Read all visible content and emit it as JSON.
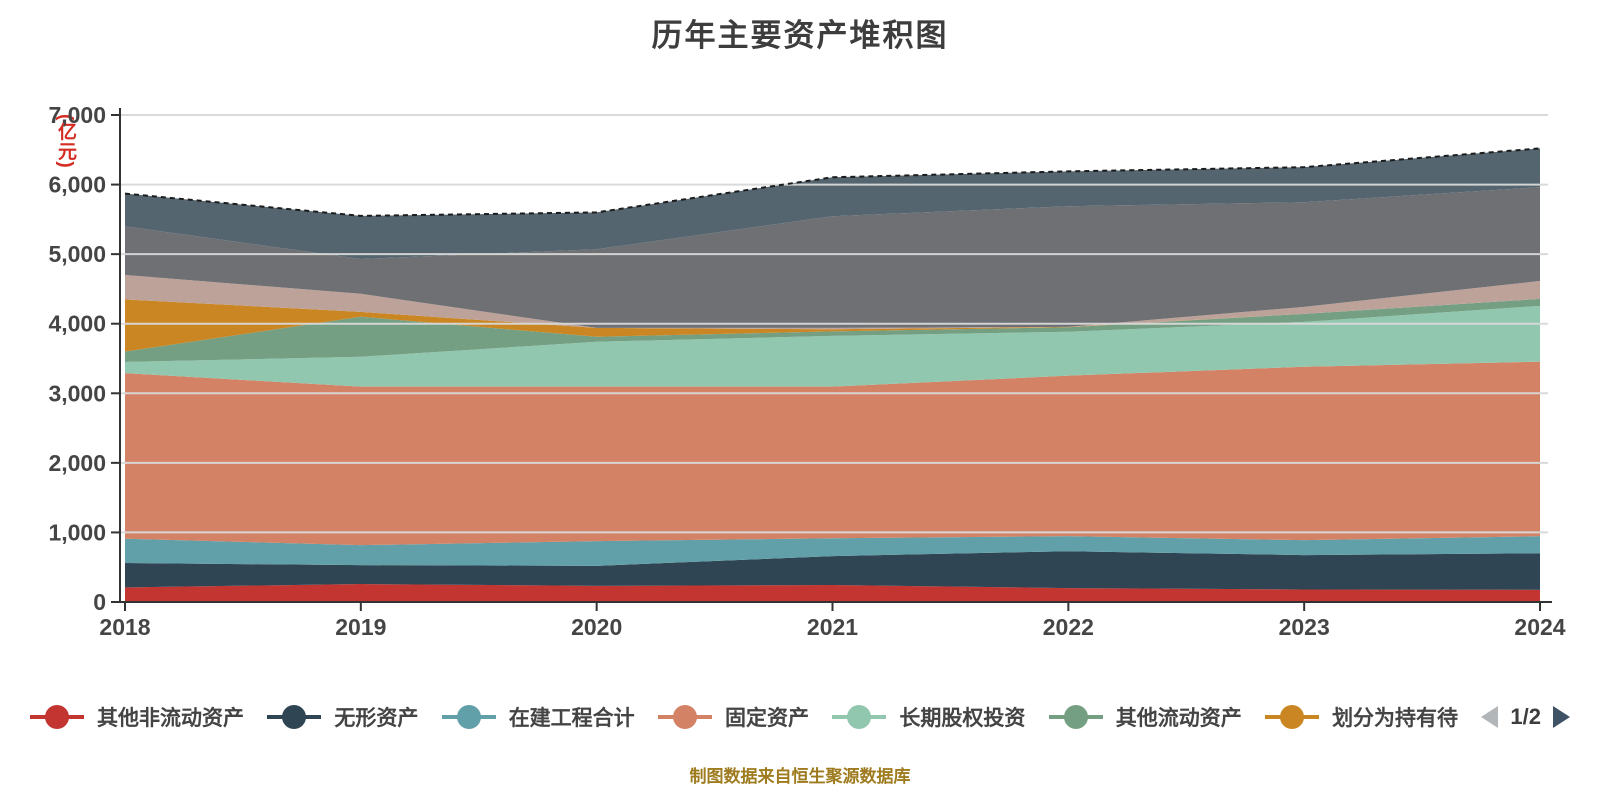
{
  "title": "历年主要资产堆积图",
  "y_axis_unit_label": "(亿元)",
  "caption": "制图数据来自恒生聚源数据库",
  "legend": {
    "page_indicator": "1/2",
    "prev_arrow_color": "#b3b6b8",
    "next_arrow_color": "#3f5266"
  },
  "chart_data": {
    "type": "area",
    "stacked": true,
    "title": "历年主要资产堆积图",
    "ylabel": "(亿元)",
    "categories": [
      "2018",
      "2019",
      "2020",
      "2021",
      "2022",
      "2023",
      "2024"
    ],
    "ylim": [
      0,
      7000
    ],
    "ytick_step": 1000,
    "grid": true,
    "gridline_color_over_areas": "#d9d9d9",
    "axis_color": "#333333",
    "tick_label_color": "#454545",
    "legend_position": "bottom",
    "series": [
      {
        "name": "其他非流动资产",
        "color": "#c23531",
        "legend_page": 1,
        "values": [
          210,
          258,
          232,
          245,
          200,
          180,
          175
        ]
      },
      {
        "name": "无形资产",
        "color": "#2f4554",
        "legend_page": 1,
        "values": [
          350,
          272,
          288,
          415,
          530,
          494,
          525
        ]
      },
      {
        "name": "在建工程合计",
        "color": "#61a0a8",
        "legend_page": 1,
        "values": [
          350,
          287,
          355,
          257,
          216,
          215,
          246
        ]
      },
      {
        "name": "固定资产",
        "color": "#d48265",
        "legend_page": 1,
        "values": [
          2380,
          2278,
          2220,
          2178,
          2307,
          2493,
          2509
        ]
      },
      {
        "name": "长期股权投资",
        "color": "#91c7ae",
        "legend_page": 1,
        "values": [
          160,
          430,
          645,
          731,
          631,
          645,
          802
        ]
      },
      {
        "name": "其他流动资产",
        "color": "#749f83",
        "legend_page": 1,
        "values": [
          150,
          575,
          72,
          64,
          66,
          115,
          100
        ]
      },
      {
        "name": "划分为持有待",
        "color": "#ca8622",
        "legend_page": 1,
        "values": [
          750,
          70,
          128,
          30,
          5,
          0,
          0
        ]
      },
      {
        "name": "",
        "color": "#bda29a",
        "legend_page": 2,
        "values": [
          350,
          260,
          0,
          20,
          0,
          100,
          258
        ]
      },
      {
        "name": "",
        "color": "#6e7074",
        "legend_page": 2,
        "values": [
          700,
          500,
          1130,
          1605,
          1734,
          1504,
          1348
        ]
      },
      {
        "name": "",
        "color": "#546570",
        "legend_page": 2,
        "top_border": "dashed-black",
        "values": [
          470,
          620,
          530,
          560,
          501,
          504,
          557
        ]
      }
    ],
    "stack_totals": [
      5870,
      5550,
      5600,
      6105,
      6190,
      6250,
      6520
    ]
  }
}
